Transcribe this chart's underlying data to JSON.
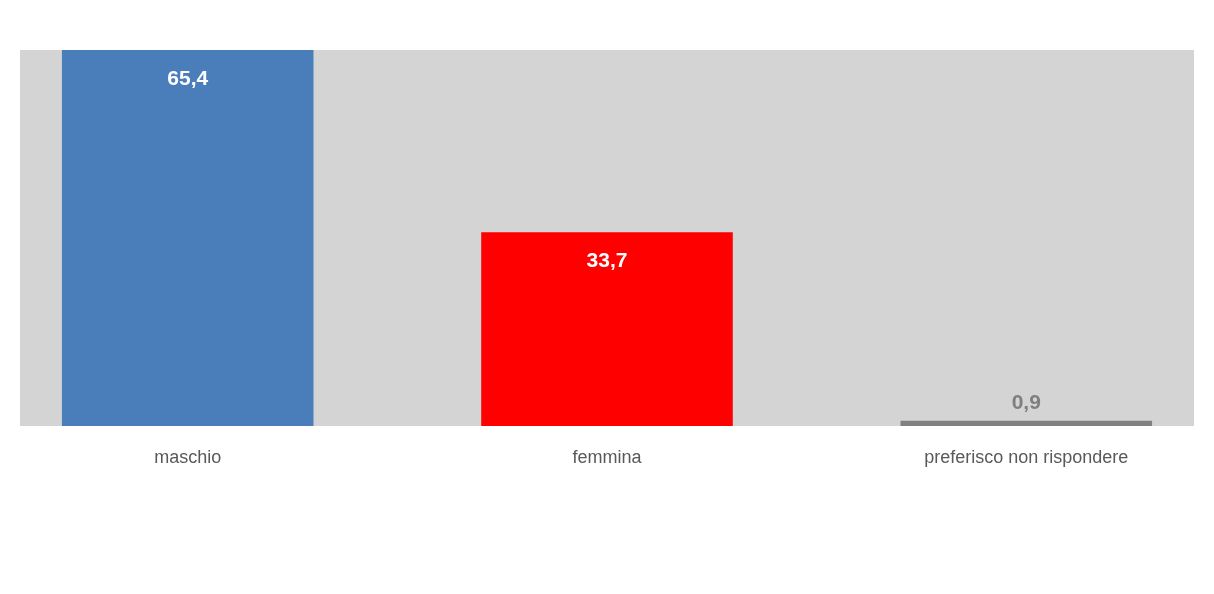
{
  "chart_data": {
    "type": "bar",
    "categories": [
      "maschio",
      "femmina",
      "preferisco non rispondere"
    ],
    "values": [
      65.4,
      33.7,
      0.9
    ],
    "colors": [
      "#4a7ebb",
      "#ff0000",
      "#808080"
    ],
    "value_labels": [
      "65,4",
      "33,7",
      "0,9"
    ],
    "grid": false
  }
}
